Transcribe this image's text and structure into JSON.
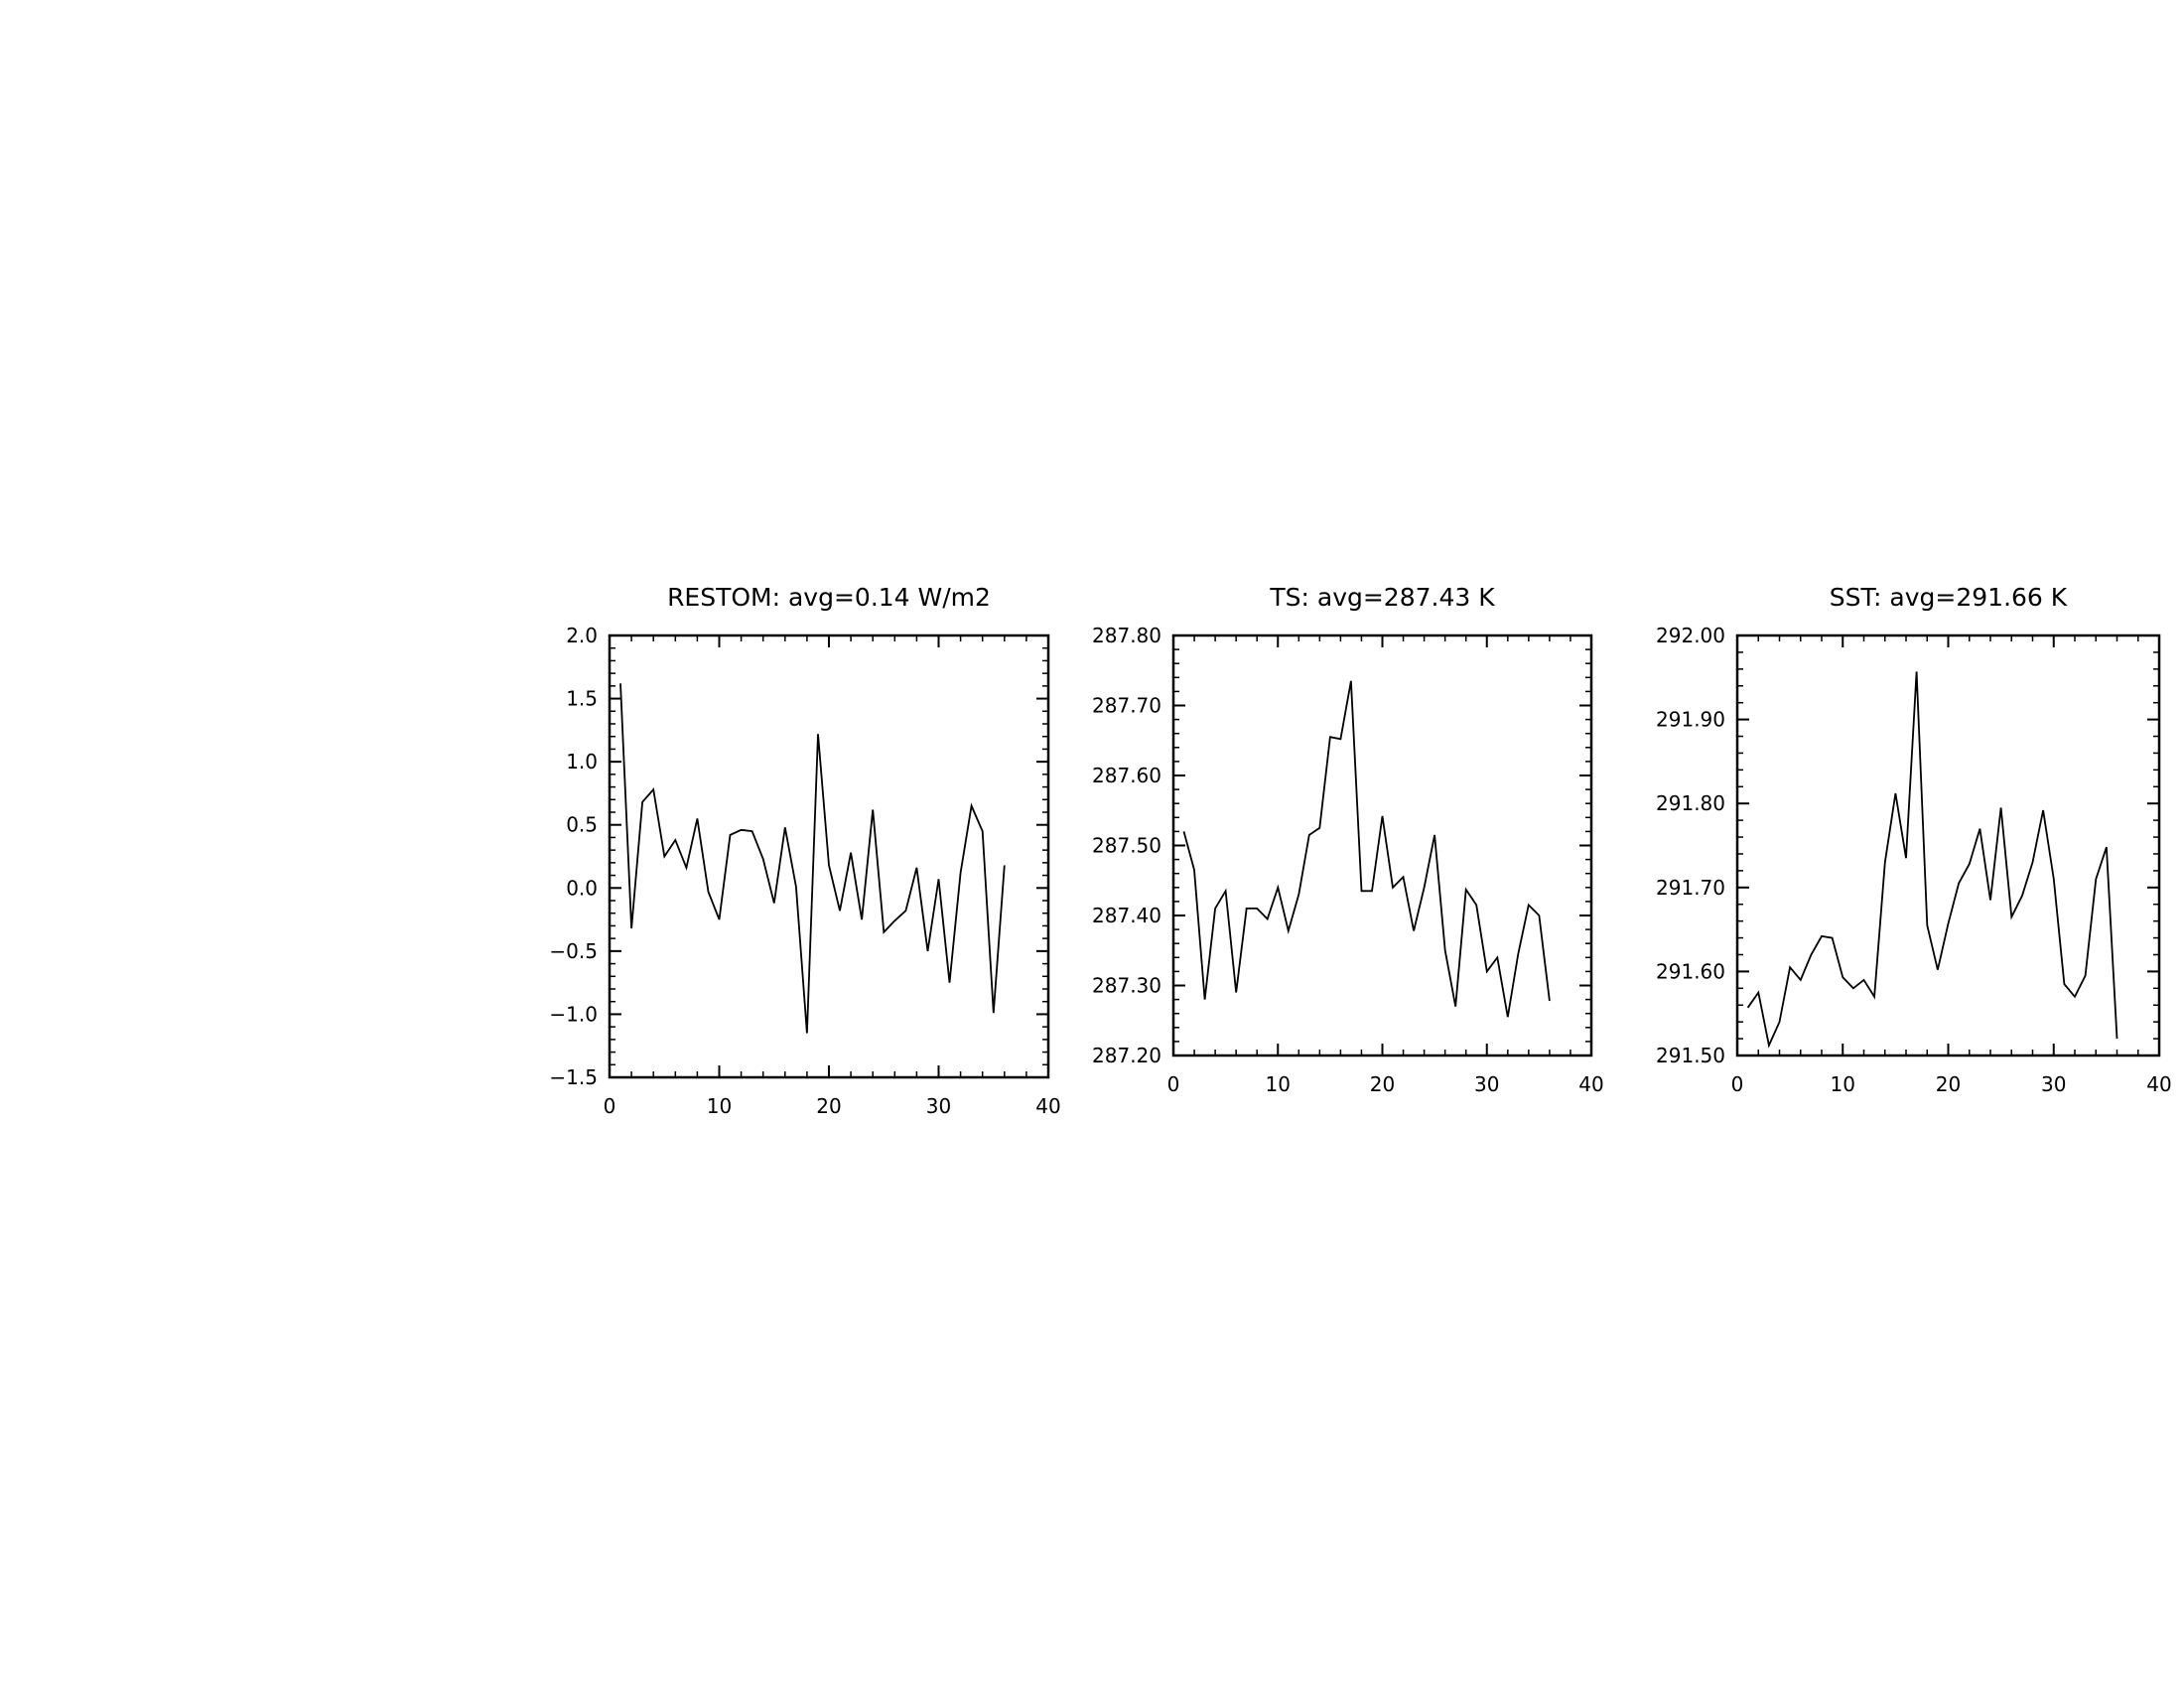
{
  "chart_data": [
    {
      "type": "line",
      "title": "RESTOM: avg=0.14 W/m2",
      "xlabel": "",
      "ylabel": "",
      "xlim": [
        0,
        40
      ],
      "ylim": [
        -1.5,
        2.0
      ],
      "x_ticks": [
        0,
        10,
        20,
        30,
        40
      ],
      "x_tick_labels": [
        "0",
        "10",
        "20",
        "30",
        "40"
      ],
      "y_ticks": [
        -1.5,
        -1.0,
        -0.5,
        0.0,
        0.5,
        1.0,
        1.5,
        2.0
      ],
      "y_tick_labels": [
        "−1.5",
        "−1.0",
        "−0.5",
        "0.0",
        "0.5",
        "1.0",
        "1.5",
        "2.0"
      ],
      "grid": false,
      "line_color": "#000000",
      "x": [
        1,
        2,
        3,
        4,
        5,
        6,
        7,
        8,
        9,
        10,
        11,
        12,
        13,
        14,
        15,
        16,
        17,
        18,
        19,
        20,
        21,
        22,
        23,
        24,
        25,
        26,
        27,
        28,
        29,
        30,
        31,
        32,
        33,
        34,
        35,
        36
      ],
      "y": [
        1.62,
        -0.32,
        0.68,
        0.78,
        0.25,
        0.38,
        0.16,
        0.55,
        -0.03,
        -0.25,
        0.42,
        0.46,
        0.45,
        0.23,
        -0.12,
        0.48,
        0.01,
        -1.15,
        1.22,
        0.18,
        -0.18,
        0.28,
        -0.25,
        0.62,
        -0.35,
        -0.26,
        -0.18,
        0.16,
        -0.5,
        0.07,
        -0.75,
        0.12,
        0.65,
        0.45,
        -0.99,
        0.18
      ]
    },
    {
      "type": "line",
      "title": "TS: avg=287.43 K",
      "xlabel": "",
      "ylabel": "",
      "xlim": [
        0,
        40
      ],
      "ylim": [
        287.2,
        287.8
      ],
      "x_ticks": [
        0,
        10,
        20,
        30,
        40
      ],
      "x_tick_labels": [
        "0",
        "10",
        "20",
        "30",
        "40"
      ],
      "y_ticks": [
        287.2,
        287.3,
        287.4,
        287.5,
        287.6,
        287.7,
        287.8
      ],
      "y_tick_labels": [
        "287.20",
        "287.30",
        "287.40",
        "287.50",
        "287.60",
        "287.70",
        "287.80"
      ],
      "grid": false,
      "line_color": "#000000",
      "x": [
        1,
        2,
        3,
        4,
        5,
        6,
        7,
        8,
        9,
        10,
        11,
        12,
        13,
        14,
        15,
        16,
        17,
        18,
        19,
        20,
        21,
        22,
        23,
        24,
        25,
        26,
        27,
        28,
        29,
        30,
        31,
        32,
        33,
        34,
        35,
        36
      ],
      "y": [
        287.52,
        287.465,
        287.28,
        287.41,
        287.435,
        287.29,
        287.41,
        287.41,
        287.395,
        287.44,
        287.378,
        287.43,
        287.515,
        287.525,
        287.655,
        287.652,
        287.735,
        287.435,
        287.435,
        287.542,
        287.44,
        287.455,
        287.378,
        287.44,
        287.515,
        287.35,
        287.27,
        287.437,
        287.415,
        287.32,
        287.34,
        287.255,
        287.345,
        287.415,
        287.4,
        287.278
      ]
    },
    {
      "type": "line",
      "title": "SST: avg=291.66 K",
      "xlabel": "",
      "ylabel": "",
      "xlim": [
        0,
        40
      ],
      "ylim": [
        291.5,
        292.0
      ],
      "x_ticks": [
        0,
        10,
        20,
        30,
        40
      ],
      "x_tick_labels": [
        "0",
        "10",
        "20",
        "30",
        "40"
      ],
      "y_ticks": [
        291.5,
        291.6,
        291.7,
        291.8,
        291.9,
        292.0
      ],
      "y_tick_labels": [
        "291.50",
        "291.60",
        "291.70",
        "291.80",
        "291.90",
        "292.00"
      ],
      "grid": false,
      "line_color": "#000000",
      "x": [
        1,
        2,
        3,
        4,
        5,
        6,
        7,
        8,
        9,
        10,
        11,
        12,
        13,
        14,
        15,
        16,
        17,
        18,
        19,
        20,
        21,
        22,
        23,
        24,
        25,
        26,
        27,
        28,
        29,
        30,
        31,
        32,
        33,
        34,
        35,
        36
      ],
      "y": [
        291.557,
        291.575,
        291.512,
        291.54,
        291.605,
        291.59,
        291.62,
        291.642,
        291.64,
        291.593,
        291.58,
        291.59,
        291.57,
        291.73,
        291.812,
        291.735,
        291.957,
        291.655,
        291.602,
        291.657,
        291.705,
        291.728,
        291.77,
        291.685,
        291.795,
        291.665,
        291.69,
        291.73,
        291.792,
        291.71,
        291.585,
        291.57,
        291.595,
        291.71,
        291.748,
        291.52
      ]
    }
  ]
}
